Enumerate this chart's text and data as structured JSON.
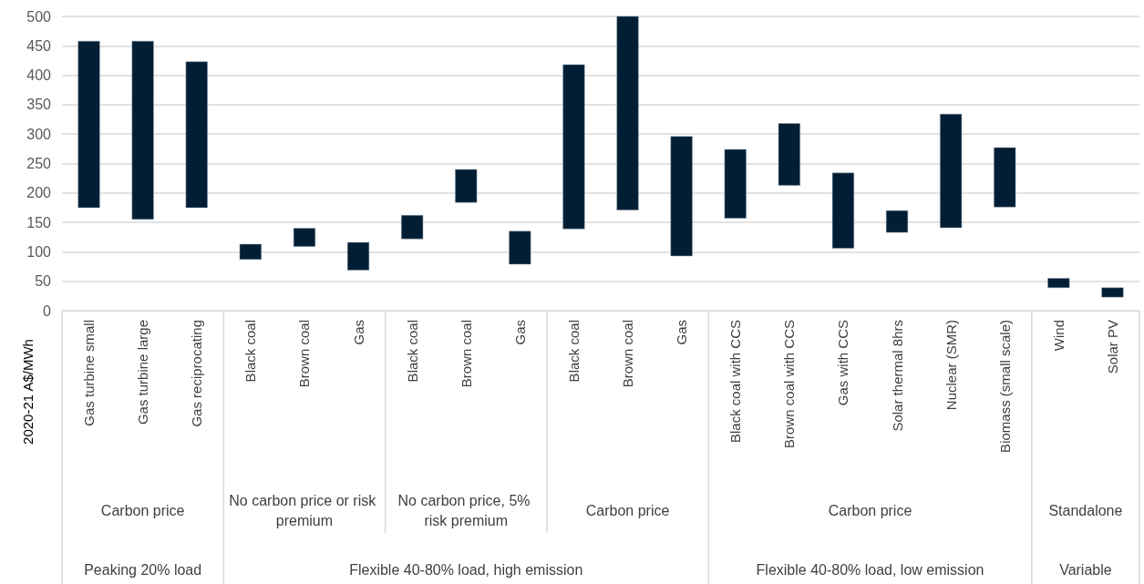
{
  "chart_data": {
    "type": "bar",
    "ylabel": "2020-21 A$/MWh",
    "categories": [
      "Gas turbine small",
      "Gas turbine large",
      "Gas reciprocating",
      "Black coal",
      "Brown coal",
      "Gas",
      "Black coal",
      "Brown coal",
      "Gas",
      "Black coal",
      "Brown coal",
      "Gas",
      "Black coal with CCS",
      "Brown coal with CCS",
      "Gas with CCS",
      "Solar thermal 8hrs",
      "Nuclear (SMR)",
      "Biomass (small scale)",
      "Wind",
      "Solar PV"
    ],
    "base": [
      175,
      155,
      175,
      87,
      109,
      69,
      122,
      184,
      79,
      139,
      171,
      93,
      157,
      213,
      106,
      133,
      141,
      176,
      39,
      23
    ],
    "values": [
      283,
      303,
      248,
      26,
      31,
      47,
      40,
      56,
      56,
      279,
      329,
      203,
      117,
      105,
      128,
      37,
      193,
      101,
      16,
      16
    ],
    "color": "#021e35",
    "ylim": [
      0,
      500
    ],
    "yticks": [
      0,
      50,
      100,
      150,
      200,
      250,
      300,
      350,
      400,
      450,
      500
    ],
    "grid": "y",
    "annotations": [
      "Carbon price",
      "No carbon price or risk premium",
      "No carbon price, 5% risk premium",
      "Carbon price",
      "Carbon price",
      "Standalone",
      "Peaking 20% load",
      "Flexible 40-80% load, high emission",
      "Flexible 40-80% load, low emission",
      "Variable"
    ]
  }
}
